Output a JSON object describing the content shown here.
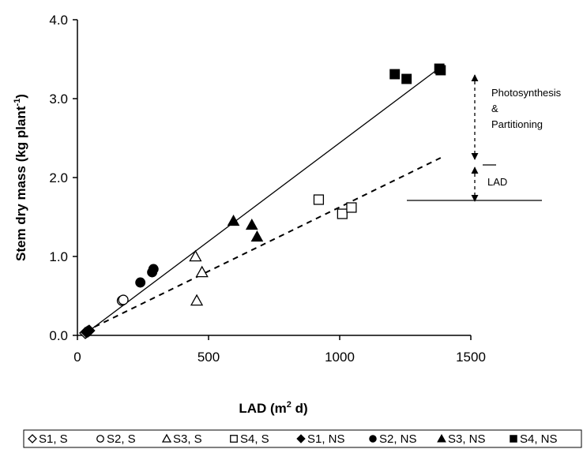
{
  "chart_data": {
    "type": "scatter",
    "xlabel_main": "LAD (m",
    "xlabel_sup": "2",
    "xlabel_end": " d)",
    "ylabel_main": "Stem dry mass (kg plant",
    "ylabel_sup": "-1",
    "ylabel_end": ")",
    "xlim": [
      0,
      1500
    ],
    "ylim": [
      0,
      4.0
    ],
    "x_ticks": [
      0,
      500,
      1000,
      1500
    ],
    "x_tick_labels": [
      "0",
      "500",
      "1000",
      "1500"
    ],
    "y_ticks": [
      0,
      1,
      2,
      3,
      4
    ],
    "y_tick_labels": [
      "0.0",
      "1.0",
      "2.0",
      "3.0",
      "4.0"
    ],
    "grid": false,
    "legend_position": "bottom",
    "series": [
      {
        "name": "S1, S",
        "marker": "diamond",
        "filled": false,
        "points": [
          [
            30,
            0.03
          ],
          [
            40,
            0.05
          ]
        ]
      },
      {
        "name": "S2, S",
        "marker": "circle",
        "filled": false,
        "points": [
          [
            170,
            0.44
          ],
          [
            175,
            0.45
          ]
        ]
      },
      {
        "name": "S3, S",
        "marker": "triangle",
        "filled": false,
        "points": [
          [
            450,
            1.0
          ],
          [
            475,
            0.8
          ],
          [
            455,
            0.44
          ]
        ]
      },
      {
        "name": "S4, S",
        "marker": "square",
        "filled": false,
        "points": [
          [
            920,
            1.72
          ],
          [
            1010,
            1.54
          ],
          [
            1045,
            1.62
          ]
        ]
      },
      {
        "name": "S1, NS",
        "marker": "diamond",
        "filled": true,
        "points": [
          [
            35,
            0.04
          ],
          [
            45,
            0.06
          ]
        ]
      },
      {
        "name": "S2, NS",
        "marker": "circle",
        "filled": true,
        "points": [
          [
            240,
            0.67
          ],
          [
            285,
            0.8
          ],
          [
            290,
            0.84
          ]
        ]
      },
      {
        "name": "S3, NS",
        "marker": "triangle",
        "filled": true,
        "points": [
          [
            595,
            1.45
          ],
          [
            665,
            1.4
          ],
          [
            685,
            1.25
          ]
        ]
      },
      {
        "name": "S4, NS",
        "marker": "square",
        "filled": true,
        "points": [
          [
            1210,
            3.31
          ],
          [
            1255,
            3.25
          ],
          [
            1380,
            3.38
          ],
          [
            1385,
            3.36
          ]
        ]
      }
    ],
    "fit_lines": [
      {
        "style": "solid",
        "from": [
          30,
          0.02
        ],
        "to": [
          1385,
          3.4
        ]
      },
      {
        "style": "dashed",
        "from": [
          30,
          0.05
        ],
        "to": [
          1385,
          2.25
        ]
      }
    ],
    "annotations": {
      "top_label_lines": [
        "Photosynthesis",
        "&",
        "Partitioning"
      ],
      "bottom_label": "LAD",
      "top_arrow_y": [
        3.3,
        2.23
      ],
      "bottom_arrow_y": [
        2.13,
        1.7
      ],
      "upper_ref_y": 2.16,
      "lower_ref_y": 1.71
    }
  }
}
